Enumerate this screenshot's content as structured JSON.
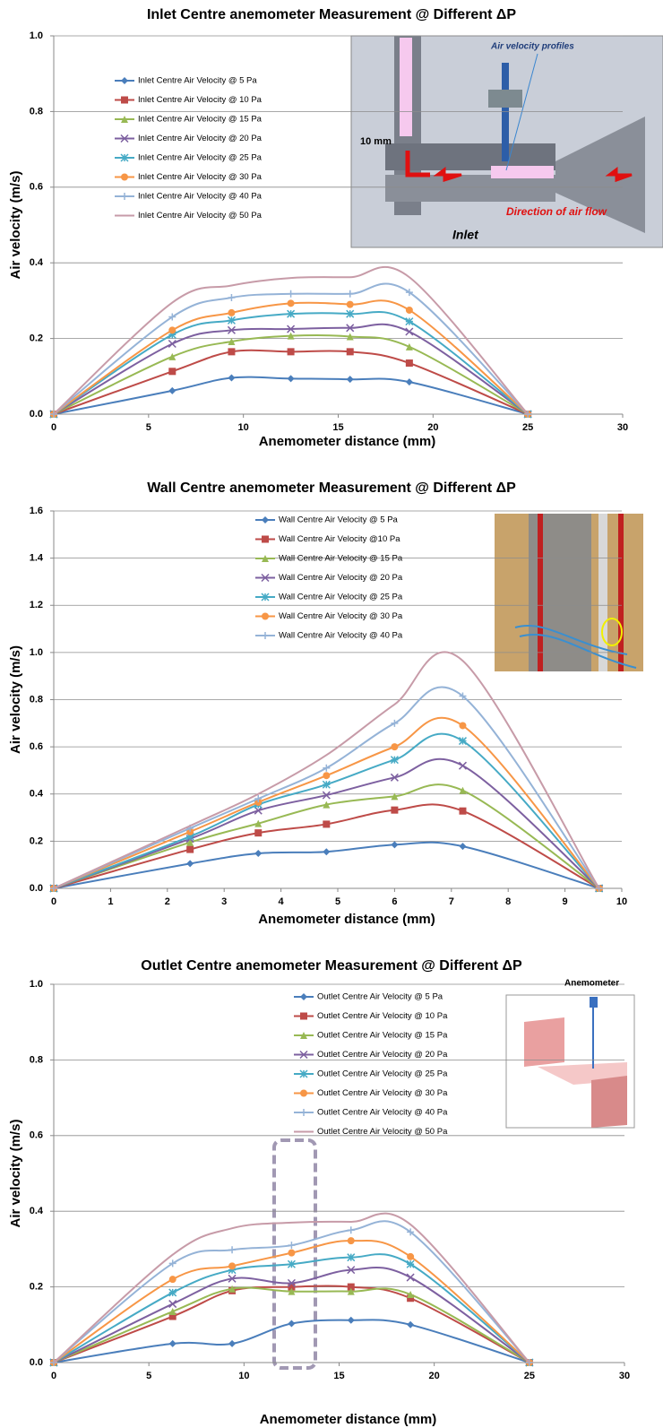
{
  "chart_data": [
    {
      "type": "line",
      "title": "Inlet Centre anemometer Measurement @ Different ΔP",
      "xlabel": "Anemometer distance (mm)",
      "ylabel": "Air velocity (m/s)",
      "x": [
        0,
        6.25,
        9.375,
        12.5,
        15.625,
        18.75,
        25
      ],
      "xlim": [
        0,
        30
      ],
      "xticks": [
        0,
        5,
        10,
        15,
        20,
        25,
        30
      ],
      "ylim": [
        0,
        1
      ],
      "yticks": [
        {
          "value": 0,
          "label": "0.0"
        },
        {
          "value": 0.2,
          "label": "0.2"
        },
        {
          "value": 0.4,
          "label": "0.4"
        },
        {
          "value": 0.6,
          "label": "0.6"
        },
        {
          "value": 0.8,
          "label": "0.8"
        },
        {
          "value": 1,
          "label": "1.0"
        }
      ],
      "grid": true,
      "legend": "upper left",
      "annotations": [
        "Air velocity profiles",
        "10 mm",
        "Direction of air flow",
        "Inlet"
      ],
      "series": [
        {
          "name": "Inlet Centre Air Velocity @ 5 Pa",
          "color": "#4a7ebb",
          "marker": "diamond",
          "values": [
            0,
            0.062,
            0.096,
            0.094,
            0.092,
            0.085,
            0
          ]
        },
        {
          "name": "Inlet Centre Air Velocity @ 10 Pa",
          "color": "#be4b48",
          "marker": "square",
          "values": [
            0,
            0.113,
            0.165,
            0.165,
            0.165,
            0.135,
            0
          ]
        },
        {
          "name": "Inlet Centre Air Velocity @ 15 Pa",
          "color": "#98b954",
          "marker": "triangle",
          "values": [
            0,
            0.152,
            0.192,
            0.207,
            0.205,
            0.178,
            0
          ]
        },
        {
          "name": "Inlet Centre Air Velocity @ 20 Pa",
          "color": "#7d60a0",
          "marker": "x",
          "values": [
            0,
            0.186,
            0.222,
            0.225,
            0.228,
            0.218,
            0
          ]
        },
        {
          "name": "Inlet Centre Air Velocity @ 25 Pa",
          "color": "#46aac5",
          "marker": "asterisk",
          "values": [
            0,
            0.21,
            0.248,
            0.265,
            0.265,
            0.245,
            0
          ]
        },
        {
          "name": "Inlet Centre Air Velocity @ 30 Pa",
          "color": "#f79646",
          "marker": "circle",
          "values": [
            0,
            0.222,
            0.268,
            0.293,
            0.29,
            0.275,
            0
          ]
        },
        {
          "name": "Inlet Centre Air Velocity @ 40 Pa",
          "color": "#95b3d7",
          "marker": "plus",
          "values": [
            0,
            0.257,
            0.308,
            0.318,
            0.318,
            0.322,
            0
          ]
        },
        {
          "name": "Inlet Centre Air Velocity @ 50 Pa",
          "color": "#c79ba8",
          "marker": "none",
          "values": [
            0,
            0.295,
            0.34,
            0.36,
            0.362,
            0.362,
            0
          ]
        }
      ]
    },
    {
      "type": "line",
      "title": "Wall Centre anemometer Measurement @ Different ΔP",
      "xlabel": "Anemometer distance (mm)",
      "ylabel": "Air velocity (m/s)",
      "x": [
        0,
        2.4,
        3.6,
        4.8,
        6.0,
        7.2,
        9.6
      ],
      "xlim": [
        0,
        10
      ],
      "xticks": [
        0,
        1,
        2,
        3,
        4,
        5,
        6,
        7,
        8,
        9,
        10
      ],
      "ylim": [
        0,
        1.6
      ],
      "yticks": [
        {
          "value": 0,
          "label": "0.0"
        },
        {
          "value": 0.2,
          "label": "0.2"
        },
        {
          "value": 0.4,
          "label": "0.4"
        },
        {
          "value": 0.6,
          "label": "0.6"
        },
        {
          "value": 0.8,
          "label": "0.8"
        },
        {
          "value": 1,
          "label": "1.0"
        },
        {
          "value": 1.2,
          "label": "1.2"
        },
        {
          "value": 1.4,
          "label": "1.4"
        },
        {
          "value": 1.6,
          "label": "1.6"
        }
      ],
      "grid": true,
      "legend": "upper center",
      "series": [
        {
          "name": "Wall Centre Air Velocity @ 5 Pa",
          "color": "#4a7ebb",
          "marker": "diamond",
          "values": [
            0,
            0.105,
            0.148,
            0.155,
            0.185,
            0.178,
            0
          ]
        },
        {
          "name": "Wall Centre Air Velocity @10 Pa",
          "color": "#be4b48",
          "marker": "square",
          "values": [
            0,
            0.165,
            0.235,
            0.272,
            0.332,
            0.328,
            0
          ]
        },
        {
          "name": "Wall Centre Air Velocity @ 15 Pa",
          "color": "#98b954",
          "marker": "triangle",
          "values": [
            0,
            0.195,
            0.275,
            0.355,
            0.39,
            0.415,
            0
          ]
        },
        {
          "name": "Wall Centre Air Velocity @ 20 Pa",
          "color": "#7d60a0",
          "marker": "x",
          "values": [
            0,
            0.21,
            0.33,
            0.395,
            0.47,
            0.52,
            0
          ]
        },
        {
          "name": "Wall Centre Air Velocity @ 25 Pa",
          "color": "#46aac5",
          "marker": "asterisk",
          "values": [
            0,
            0.22,
            0.355,
            0.44,
            0.545,
            0.625,
            0
          ]
        },
        {
          "name": "Wall Centre Air Velocity @ 30 Pa",
          "color": "#f79646",
          "marker": "circle",
          "values": [
            0,
            0.24,
            0.365,
            0.478,
            0.6,
            0.69,
            0
          ]
        },
        {
          "name": "Wall Centre Air Velocity @ 40 Pa",
          "color": "#95b3d7",
          "marker": "plus",
          "values": [
            0,
            0.255,
            0.38,
            0.51,
            0.7,
            0.815,
            0
          ]
        },
        {
          "color": "#c79ba8",
          "marker": "none",
          "values": [
            0,
            0.265,
            0.4,
            0.565,
            0.78,
            0.965,
            0
          ]
        }
      ]
    },
    {
      "type": "line",
      "title": "Outlet Centre anemometer Measurement @ Different ΔP",
      "xlabel": "Anemometer distance (mm)",
      "ylabel": "Air velocity (m/s)",
      "x": [
        0,
        6.25,
        9.375,
        12.5,
        15.625,
        18.75,
        25
      ],
      "xlim": [
        0,
        30
      ],
      "xticks": [
        0,
        5,
        10,
        15,
        20,
        25,
        30
      ],
      "ylim": [
        0,
        1
      ],
      "yticks": [
        {
          "value": 0,
          "label": "0.0"
        },
        {
          "value": 0.2,
          "label": "0.2"
        },
        {
          "value": 0.4,
          "label": "0.4"
        },
        {
          "value": 0.6,
          "label": "0.6"
        },
        {
          "value": 0.8,
          "label": "0.8"
        },
        {
          "value": 1,
          "label": "1.0"
        }
      ],
      "grid": true,
      "legend": "upper right",
      "annotations": [
        "Anemometer"
      ],
      "series": [
        {
          "name": "Outlet Centre Air Velocity @ 5 Pa",
          "color": "#4a7ebb",
          "marker": "diamond",
          "values": [
            0,
            0.05,
            0.05,
            0.103,
            0.112,
            0.1,
            0
          ]
        },
        {
          "name": "Outlet Centre Air Velocity @ 10 Pa",
          "color": "#be4b48",
          "marker": "square",
          "values": [
            0,
            0.122,
            0.19,
            0.2,
            0.2,
            0.17,
            0
          ]
        },
        {
          "name": "Outlet Centre Air Velocity @ 15 Pa",
          "color": "#98b954",
          "marker": "triangle",
          "values": [
            0,
            0.135,
            0.195,
            0.188,
            0.188,
            0.18,
            0
          ]
        },
        {
          "name": "Outlet Centre Air Velocity @ 20 Pa",
          "color": "#7d60a0",
          "marker": "x",
          "values": [
            0,
            0.155,
            0.222,
            0.21,
            0.245,
            0.225,
            0
          ]
        },
        {
          "name": "Outlet Centre Air Velocity @ 25 Pa",
          "color": "#46aac5",
          "marker": "asterisk",
          "values": [
            0,
            0.185,
            0.245,
            0.26,
            0.278,
            0.26,
            0
          ]
        },
        {
          "name": "Outlet Centre Air Velocity @ 30 Pa",
          "color": "#f79646",
          "marker": "circle",
          "values": [
            0,
            0.22,
            0.255,
            0.29,
            0.322,
            0.28,
            0
          ]
        },
        {
          "name": "Outlet Centre Air Velocity @ 40 Pa",
          "color": "#95b3d7",
          "marker": "plus",
          "values": [
            0,
            0.262,
            0.298,
            0.31,
            0.35,
            0.345,
            0
          ]
        },
        {
          "name": "Outlet Centre Air Velocity @ 50 Pa",
          "color": "#c79ba8",
          "marker": "none",
          "values": [
            0,
            0.285,
            0.355,
            0.37,
            0.372,
            0.365,
            0
          ]
        }
      ]
    }
  ]
}
